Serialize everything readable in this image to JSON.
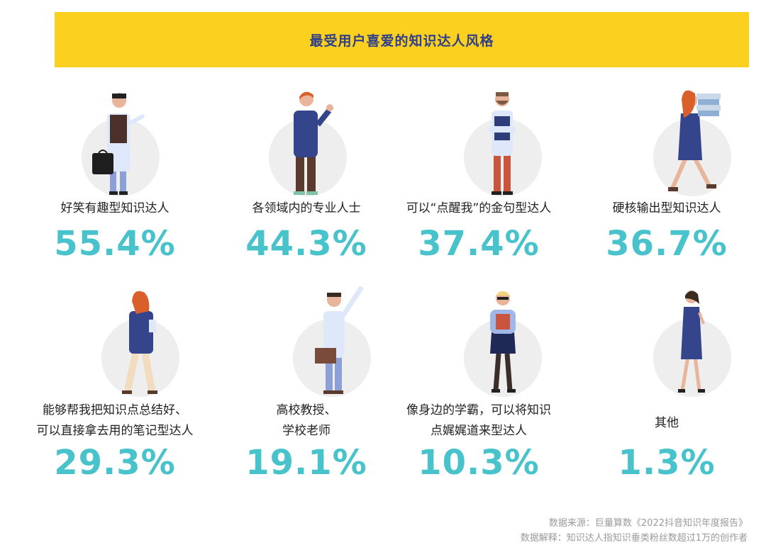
{
  "chart_data": {
    "type": "table",
    "title": "最受用户喜爱的知识达人风格",
    "items": [
      {
        "label_lines": [
          "好笑有趣型知识达人"
        ],
        "value": 55.4,
        "display": "55.4%"
      },
      {
        "label_lines": [
          "各领域内的专业人士"
        ],
        "value": 44.3,
        "display": "44.3%"
      },
      {
        "label_lines": [
          "可以“点醒我”的金句型达人"
        ],
        "value": 37.4,
        "display": "37.4%"
      },
      {
        "label_lines": [
          "硬核输出型知识达人"
        ],
        "value": 36.7,
        "display": "36.7%"
      },
      {
        "label_lines": [
          "能够帮我把知识点总结好、",
          "可以直接拿去用的笔记型达人"
        ],
        "value": 29.3,
        "display": "29.3%"
      },
      {
        "label_lines": [
          "高校教授、",
          "学校老师"
        ],
        "value": 19.1,
        "display": "19.1%"
      },
      {
        "label_lines": [
          "像身边的学霸，可以将知识",
          "点娓娓道来型达人"
        ],
        "value": 10.3,
        "display": "10.3%"
      },
      {
        "label_lines": [
          "其他"
        ],
        "value": 1.3,
        "display": "1.3%"
      }
    ]
  },
  "footer": {
    "source": "数据来源：巨量算数《2022抖音知识年度报告》",
    "note": "数据解释：知识达人指知识垂类粉丝数超过1万的创作者"
  },
  "colors": {
    "banner": "#fcd01e",
    "title": "#2f3f8c",
    "value": "#48c2cb"
  },
  "figure_icons": [
    "businessman-with-briefcase-icon",
    "man-thumbs-up-icon",
    "bearded-man-arms-crossed-icon",
    "woman-carrying-books-icon",
    "woman-on-phone-icon",
    "man-waving-with-book-icon",
    "woman-holding-book-icon",
    "woman-using-phone-icon"
  ]
}
